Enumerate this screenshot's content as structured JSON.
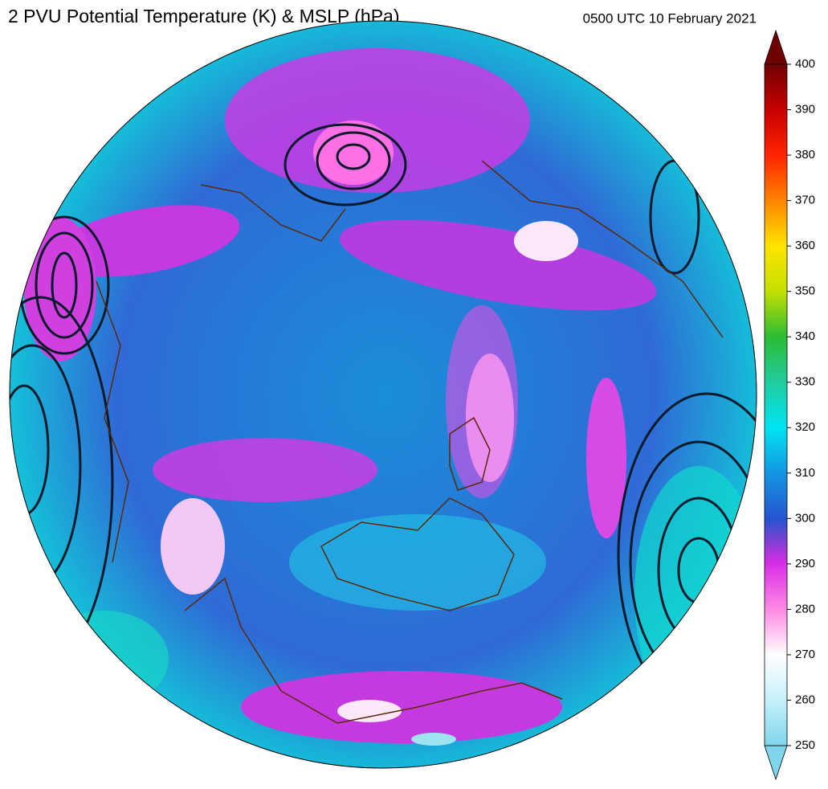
{
  "title": "2 PVU Potential Temperature (K) & MSLP (hPa)",
  "valid_time": "0500 UTC 10 February 2021",
  "colorbar": {
    "range": [
      250,
      400
    ],
    "ticks": [
      250,
      260,
      270,
      280,
      290,
      300,
      310,
      320,
      330,
      340,
      350,
      360,
      370,
      380,
      390,
      400
    ]
  }
}
